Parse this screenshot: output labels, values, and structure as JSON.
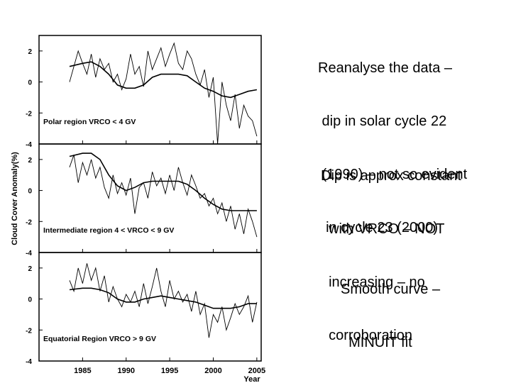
{
  "notes": [
    {
      "lines": [
        "Reanalyse the data –",
        " dip in solar cycle 22",
        " (1990) – not so evident",
        "  in cycle 23 (2000)"
      ]
    },
    {
      "lines": [
        "Dip is approx constant",
        "  with VRCO – NOT",
        "  increasing – no",
        "  corroboration"
      ]
    },
    {
      "lines": [
        "Smooth curve –",
        "  MINUIT fit"
      ]
    }
  ],
  "chart_data": {
    "type": "line",
    "ylabel": "Cloud Cover Anomaly(%)",
    "xlabel": "Year",
    "x_ticks": [
      1985,
      1990,
      1995,
      2000,
      2005
    ],
    "xlim": [
      1980,
      2005.5
    ],
    "panels": [
      {
        "label": "Polar region VRCO < 4 GV",
        "ylim": [
          -4,
          3
        ],
        "y_ticks": [
          2,
          0,
          -2,
          -4
        ],
        "smooth": {
          "x": [
            1983.5,
            1985,
            1986,
            1987,
            1988,
            1989,
            1990,
            1991,
            1992,
            1993,
            1994,
            1995,
            1996,
            1997,
            1998,
            1999,
            2000,
            2001,
            2002,
            2003,
            2004,
            2005
          ],
          "y": [
            1.0,
            1.2,
            1.3,
            1.0,
            0.5,
            -0.2,
            -0.4,
            -0.4,
            -0.2,
            0.3,
            0.5,
            0.5,
            0.5,
            0.4,
            0.0,
            -0.4,
            -0.6,
            -0.9,
            -1.0,
            -0.8,
            -0.6,
            -0.5
          ]
        },
        "data": {
          "x": [
            1983.5,
            1984,
            1984.5,
            1985,
            1985.5,
            1986,
            1986.5,
            1987,
            1987.5,
            1988,
            1988.5,
            1989,
            1989.5,
            1990,
            1990.5,
            1991,
            1991.5,
            1992,
            1992.5,
            1993,
            1993.5,
            1994,
            1994.5,
            1995,
            1995.5,
            1996,
            1996.5,
            1997,
            1997.5,
            1998,
            1998.5,
            1999,
            1999.5,
            2000,
            2000.5,
            2001,
            2001.5,
            2002,
            2002.5,
            2003,
            2003.5,
            2004,
            2004.5,
            2005
          ],
          "y": [
            0.0,
            1.0,
            2.0,
            1.2,
            0.5,
            1.8,
            0.3,
            1.5,
            0.8,
            1.2,
            0.0,
            0.5,
            -0.5,
            0.2,
            1.8,
            0.5,
            1.0,
            -0.3,
            2.0,
            0.8,
            1.5,
            2.2,
            1.0,
            1.8,
            2.5,
            1.2,
            0.8,
            2.0,
            1.5,
            0.5,
            -0.2,
            0.8,
            -1.0,
            0.3,
            -4.0,
            0.0,
            -1.5,
            -2.5,
            -0.8,
            -3.0,
            -1.5,
            -2.2,
            -2.5,
            -3.5
          ]
        }
      },
      {
        "label": "Intermediate region 4 < VRCO < 9 GV",
        "ylim": [
          -4,
          3
        ],
        "y_ticks": [
          2,
          0,
          -2,
          -4
        ],
        "smooth": {
          "x": [
            1983.5,
            1985,
            1986,
            1987,
            1988,
            1989,
            1990,
            1991,
            1992,
            1993,
            1994,
            1995,
            1996,
            1997,
            1998,
            1999,
            2000,
            2001,
            2002,
            2003,
            2004,
            2005
          ],
          "y": [
            2.2,
            2.4,
            2.4,
            2.0,
            1.0,
            0.3,
            0.0,
            0.2,
            0.5,
            0.6,
            0.6,
            0.6,
            0.6,
            0.4,
            0.0,
            -0.5,
            -0.9,
            -1.2,
            -1.3,
            -1.3,
            -1.3,
            -1.3
          ]
        },
        "data": {
          "x": [
            1983.5,
            1984,
            1984.5,
            1985,
            1985.5,
            1986,
            1986.5,
            1987,
            1987.5,
            1988,
            1988.5,
            1989,
            1989.5,
            1990,
            1990.5,
            1991,
            1991.5,
            1992,
            1992.5,
            1993,
            1993.5,
            1994,
            1994.5,
            1995,
            1995.5,
            1996,
            1996.5,
            1997,
            1997.5,
            1998,
            1998.5,
            1999,
            1999.5,
            2000,
            2000.5,
            2001,
            2001.5,
            2002,
            2002.5,
            2003,
            2003.5,
            2004,
            2004.5,
            2005
          ],
          "y": [
            1.5,
            2.3,
            0.5,
            1.8,
            1.0,
            2.0,
            0.8,
            1.5,
            0.2,
            -0.5,
            1.0,
            -0.2,
            0.5,
            -0.3,
            0.8,
            -1.5,
            0.2,
            0.5,
            -0.5,
            1.2,
            0.3,
            0.8,
            -0.2,
            1.0,
            0.0,
            1.5,
            0.5,
            -0.3,
            1.0,
            0.3,
            -0.5,
            -0.2,
            -1.0,
            -0.5,
            -1.5,
            -0.8,
            -2.0,
            -1.0,
            -2.5,
            -1.5,
            -2.8,
            -1.2,
            -2.0,
            -3.0
          ]
        }
      },
      {
        "label": "Equatorial Region VRCO > 9 GV",
        "ylim": [
          -4,
          3
        ],
        "y_ticks": [
          2,
          0,
          -2,
          -4
        ],
        "smooth": {
          "x": [
            1983.5,
            1985,
            1986,
            1987,
            1988,
            1989,
            1990,
            1991,
            1992,
            1993,
            1994,
            1995,
            1996,
            1997,
            1998,
            1999,
            2000,
            2001,
            2002,
            2003,
            2004,
            2005
          ],
          "y": [
            0.6,
            0.7,
            0.7,
            0.6,
            0.4,
            0.0,
            -0.2,
            -0.2,
            0.0,
            0.1,
            0.2,
            0.1,
            0.0,
            -0.1,
            -0.2,
            -0.4,
            -0.6,
            -0.6,
            -0.6,
            -0.5,
            -0.3,
            -0.3
          ]
        },
        "data": {
          "x": [
            1983.5,
            1984,
            1984.5,
            1985,
            1985.5,
            1986,
            1986.5,
            1987,
            1987.5,
            1988,
            1988.5,
            1989,
            1989.5,
            1990,
            1990.5,
            1991,
            1991.5,
            1992,
            1992.5,
            1993,
            1993.5,
            1994,
            1994.5,
            1995,
            1995.5,
            1996,
            1996.5,
            1997,
            1997.5,
            1998,
            1998.5,
            1999,
            1999.5,
            2000,
            2000.5,
            2001,
            2001.5,
            2002,
            2002.5,
            2003,
            2003.5,
            2004,
            2004.5,
            2005
          ],
          "y": [
            1.2,
            0.5,
            2.0,
            1.0,
            2.3,
            1.2,
            2.0,
            0.5,
            1.5,
            -0.2,
            0.8,
            0.0,
            -0.5,
            0.3,
            -0.2,
            0.5,
            -0.5,
            1.0,
            -0.3,
            0.8,
            2.0,
            0.5,
            -0.5,
            1.2,
            0.0,
            0.5,
            -0.2,
            0.3,
            -0.8,
            0.5,
            -1.0,
            -0.3,
            -2.5,
            -1.0,
            -1.5,
            -0.5,
            -2.0,
            -1.2,
            -0.3,
            -1.0,
            -0.5,
            0.2,
            -1.5,
            -0.2
          ]
        }
      }
    ]
  }
}
